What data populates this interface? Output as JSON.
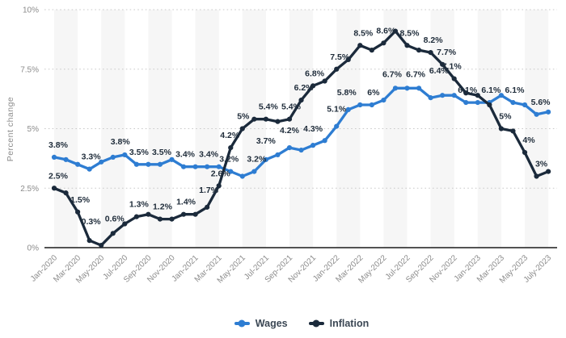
{
  "chart_data": {
    "type": "line",
    "title": "",
    "xlabel": "",
    "ylabel": "Percent change",
    "ylim": [
      0,
      10
    ],
    "grid": "horizontal-dotted",
    "legend_position": "bottom",
    "band_color": "#f6f6f6",
    "yticks": [
      "0%",
      "2.5%",
      "5%",
      "7.5%",
      "10%"
    ],
    "ytick_values": [
      0,
      2.5,
      5,
      7.5,
      10
    ],
    "x_tick_labels": [
      "Jan-2020",
      "Mar-2020",
      "May-2020",
      "Jul-2020",
      "Sep-2020",
      "Nov-2020",
      "Jan-2021",
      "Mar-2021",
      "May-2021",
      "Jul-2021",
      "Sep-2021",
      "Nov-2021",
      "Jan-2022",
      "Mar-2022",
      "May-2022",
      "Jul-2022",
      "Sep-2022",
      "Nov-2022",
      "Jan-2023",
      "Mar-2023",
      "May-2023",
      "July-2023"
    ],
    "x_start": "Jan-2020",
    "x_end": "July-2023",
    "x_interval": "monthly",
    "series": [
      {
        "name": "Wages",
        "color": "#2e7dd2",
        "values": [
          3.8,
          3.7,
          3.5,
          3.3,
          3.6,
          3.8,
          3.9,
          3.5,
          3.5,
          3.5,
          3.7,
          3.4,
          3.4,
          3.4,
          3.4,
          3.2,
          3.0,
          3.2,
          3.7,
          3.9,
          4.2,
          4.1,
          4.3,
          4.5,
          5.1,
          5.8,
          6.0,
          6.0,
          6.2,
          6.7,
          6.7,
          6.7,
          6.3,
          6.4,
          6.4,
          6.1,
          6.1,
          6.1,
          6.4,
          6.1,
          6.0,
          5.6,
          5.7
        ],
        "point_labels": [
          {
            "i": 0,
            "t": "3.8%",
            "dx": 5
          },
          {
            "i": 3,
            "t": "3.3%",
            "dx": 2
          },
          {
            "i": 5,
            "t": "3.8%",
            "dx": 9,
            "dy": -4
          },
          {
            "i": 7,
            "t": "3.5%",
            "dx": 3
          },
          {
            "i": 9,
            "t": "3.5%",
            "dx": 2
          },
          {
            "i": 11,
            "t": "3.4%",
            "dx": 2
          },
          {
            "i": 13,
            "t": "3.4%",
            "dx": 2
          },
          {
            "i": 15,
            "t": "3.2%",
            "dx": -2
          },
          {
            "i": 17,
            "t": "3.2%",
            "dx": 3
          },
          {
            "i": 18,
            "t": "3.7%",
            "dy": -8
          },
          {
            "i": 20,
            "t": "4.2%",
            "dy": -6
          },
          {
            "i": 22,
            "t": "4.3%",
            "dy": -5
          },
          {
            "i": 24,
            "t": "5.1%",
            "dy": -6
          },
          {
            "i": 25,
            "t": "5.8%",
            "dx": -2,
            "dy": -6
          },
          {
            "i": 27,
            "t": "6%",
            "dx": 2
          },
          {
            "i": 29,
            "t": "6.7%",
            "dx": -4,
            "dy": -2
          },
          {
            "i": 31,
            "t": "6.7%",
            "dx": -4,
            "dy": -2
          },
          {
            "i": 35,
            "t": "6.1%",
            "dx": 2
          },
          {
            "i": 37,
            "t": "6.1%",
            "dx": 2
          },
          {
            "i": 39,
            "t": "6.1%",
            "dx": 2
          },
          {
            "i": 41,
            "t": "5.6%",
            "dx": 5
          }
        ]
      },
      {
        "name": "Inflation",
        "color": "#1b2a3b",
        "values": [
          2.5,
          2.3,
          1.5,
          0.3,
          0.1,
          0.6,
          1.0,
          1.3,
          1.4,
          1.2,
          1.2,
          1.4,
          1.4,
          1.7,
          2.6,
          4.2,
          5.0,
          5.4,
          5.4,
          5.3,
          5.4,
          6.2,
          6.8,
          7.0,
          7.5,
          7.9,
          8.5,
          8.3,
          8.6,
          9.1,
          8.5,
          8.3,
          8.2,
          7.7,
          7.1,
          6.5,
          6.4,
          6.0,
          5.0,
          4.9,
          4.0,
          3.0,
          3.2
        ],
        "point_labels": [
          {
            "i": 0,
            "t": "2.5%",
            "dx": 5
          },
          {
            "i": 2,
            "t": "1.5%",
            "dx": 3
          },
          {
            "i": 3,
            "t": "0.3%",
            "dx": 2,
            "dy": -8
          },
          {
            "i": 5,
            "t": "0.6%",
            "dx": 2,
            "dy": -3
          },
          {
            "i": 7,
            "t": "1.3%",
            "dx": 3
          },
          {
            "i": 9,
            "t": "1.2%",
            "dx": 3
          },
          {
            "i": 11,
            "t": "1.4%",
            "dx": 3
          },
          {
            "i": 13,
            "t": "1.7%",
            "dx": 2,
            "dy": -6
          },
          {
            "i": 14,
            "t": "2.6%",
            "dx": 2
          },
          {
            "i": 15,
            "t": "4.2%",
            "dx": -1
          },
          {
            "i": 16,
            "t": "5%",
            "dx": 1
          },
          {
            "i": 18,
            "t": "5.4%",
            "dx": 3
          },
          {
            "i": 20,
            "t": "5.4%",
            "dx": 2
          },
          {
            "i": 21,
            "t": "6.2%",
            "dx": 3
          },
          {
            "i": 22,
            "t": "6.8%",
            "dx": 2
          },
          {
            "i": 24,
            "t": "7.5%",
            "dx": 4
          },
          {
            "i": 26,
            "t": "8.5%",
            "dx": 4
          },
          {
            "i": 28,
            "t": "8.6%",
            "dx": 3
          },
          {
            "i": 30,
            "t": "8.5%",
            "dx": 3
          },
          {
            "i": 32,
            "t": "8.2%",
            "dx": 3
          },
          {
            "i": 33,
            "t": "7.7%",
            "dx": 5
          },
          {
            "i": 34,
            "t": "7.1%",
            "dx": -3
          },
          {
            "i": 36,
            "t": "6.4%",
            "dx": -48,
            "dy": -15
          },
          {
            "i": 38,
            "t": "5%",
            "dx": 5
          },
          {
            "i": 40,
            "t": "4%",
            "dx": 5
          },
          {
            "i": 41,
            "t": "3%",
            "dx": 6
          }
        ]
      }
    ],
    "colors": {
      "band": "#f6f6f6",
      "gridline": "#c9c9c9",
      "axis_line": "#1a1a1a",
      "tick_text": "#8b8b8b",
      "data_label_text": "#1f2c3a",
      "legend_text": "#3b4754",
      "background": "#ffffff"
    }
  },
  "legend": {
    "items": [
      {
        "label": "Wages",
        "color": "#2e7dd2"
      },
      {
        "label": "Inflation",
        "color": "#1b2a3b"
      }
    ]
  }
}
